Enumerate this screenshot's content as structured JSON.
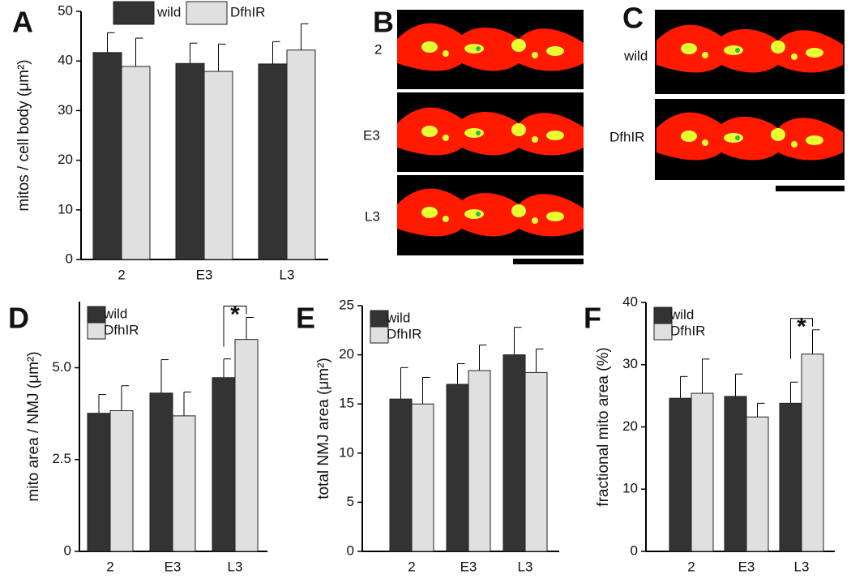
{
  "chart_data": [
    {
      "type": "bar",
      "panel": "A",
      "ylabel": "mitos / cell body (μm²)",
      "categories": [
        "2",
        "E3",
        "L3"
      ],
      "series": [
        {
          "name": "wild",
          "color": "#333333",
          "values": [
            41.7,
            39.5,
            39.4
          ],
          "errors": [
            4.0,
            4.1,
            4.5
          ]
        },
        {
          "name": "DfhIR",
          "color": "#e0e0e0",
          "values": [
            38.9,
            37.9,
            42.2
          ],
          "errors": [
            5.7,
            5.5,
            5.3
          ]
        }
      ],
      "ylim": [
        0,
        50
      ],
      "yticks": [
        0,
        10,
        20,
        30,
        40,
        50
      ],
      "legend": "top"
    },
    {
      "type": "bar",
      "panel": "D",
      "ylabel": "mito area / NMJ (μm²)",
      "categories": [
        "2",
        "E3",
        "L3"
      ],
      "series": [
        {
          "name": "wild",
          "color": "#333333",
          "values": [
            3.76,
            4.31,
            4.73
          ],
          "errors": [
            0.51,
            0.91,
            0.51
          ]
        },
        {
          "name": "DfhIR",
          "color": "#e0e0e0",
          "values": [
            3.83,
            3.69,
            5.77
          ],
          "errors": [
            0.68,
            0.65,
            0.6
          ]
        }
      ],
      "ylim": [
        0,
        6.8
      ],
      "yticks": [
        0,
        2.5,
        {
          "value": 5,
          "label": "5.0"
        }
      ],
      "legend": "upper left",
      "annotation": "*"
    },
    {
      "type": "bar",
      "panel": "E",
      "ylabel": "total NMJ area (μm²)",
      "categories": [
        "2",
        "E3",
        "L3"
      ],
      "series": [
        {
          "name": "wild",
          "color": "#333333",
          "values": [
            15.5,
            17.0,
            20.0
          ],
          "errors": [
            3.2,
            2.1,
            2.8
          ]
        },
        {
          "name": "DfhIR",
          "color": "#e0e0e0",
          "values": [
            15.0,
            18.4,
            18.2
          ],
          "errors": [
            2.7,
            2.6,
            2.4
          ]
        }
      ],
      "ylim": [
        0,
        25
      ],
      "yticks": [
        0,
        5,
        10,
        15,
        20,
        25
      ],
      "legend": "upper left"
    },
    {
      "type": "bar",
      "panel": "F",
      "ylabel": "fractional mito area (%)",
      "categories": [
        "2",
        "E3",
        "L3"
      ],
      "series": [
        {
          "name": "wild",
          "color": "#333333",
          "values": [
            24.6,
            24.9,
            23.8
          ],
          "errors": [
            3.5,
            3.6,
            3.4
          ]
        },
        {
          "name": "DfhIR",
          "color": "#e0e0e0",
          "values": [
            25.4,
            21.6,
            31.7
          ],
          "errors": [
            5.5,
            2.2,
            3.9
          ]
        }
      ],
      "ylim": [
        0,
        40
      ],
      "yticks": [
        0,
        10,
        20,
        30,
        40
      ],
      "legend": "upper left",
      "annotation": "*"
    }
  ],
  "image_panels": [
    {
      "panel": "B",
      "labels": [
        "2",
        "E3",
        "L3"
      ]
    },
    {
      "panel": "C",
      "labels": [
        "wild",
        "DfhIR"
      ]
    }
  ]
}
